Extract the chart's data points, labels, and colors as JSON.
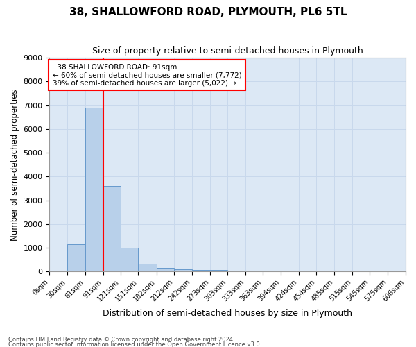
{
  "title": "38, SHALLOWFORD ROAD, PLYMOUTH, PL6 5TL",
  "subtitle": "Size of property relative to semi-detached houses in Plymouth",
  "xlabel": "Distribution of semi-detached houses by size in Plymouth",
  "ylabel": "Number of semi-detached properties",
  "annotation_line1": "  38 SHALLOWFORD ROAD: 91sqm  ",
  "annotation_line2": "← 60% of semi-detached houses are smaller (7,772)",
  "annotation_line3": "39% of semi-detached houses are larger (5,022) →",
  "bin_edges": [
    0,
    30,
    61,
    91,
    121,
    151,
    182,
    212,
    242,
    273,
    303,
    333,
    363,
    394,
    424,
    454,
    485,
    515,
    545,
    575,
    606
  ],
  "bar_heights": [
    0,
    1150,
    6900,
    3600,
    1000,
    330,
    150,
    100,
    80,
    80,
    0,
    0,
    0,
    0,
    0,
    0,
    0,
    0,
    0,
    0
  ],
  "bar_color": "#b8d0ea",
  "bar_edge_color": "#6699cc",
  "red_line_x": 91,
  "ylim": [
    0,
    9000
  ],
  "yticks": [
    0,
    1000,
    2000,
    3000,
    4000,
    5000,
    6000,
    7000,
    8000,
    9000
  ],
  "grid_color": "#c8d8ec",
  "bg_color": "#dce8f5",
  "footer_line1": "Contains HM Land Registry data © Crown copyright and database right 2024.",
  "footer_line2": "Contains public sector information licensed under the Open Government Licence v3.0."
}
